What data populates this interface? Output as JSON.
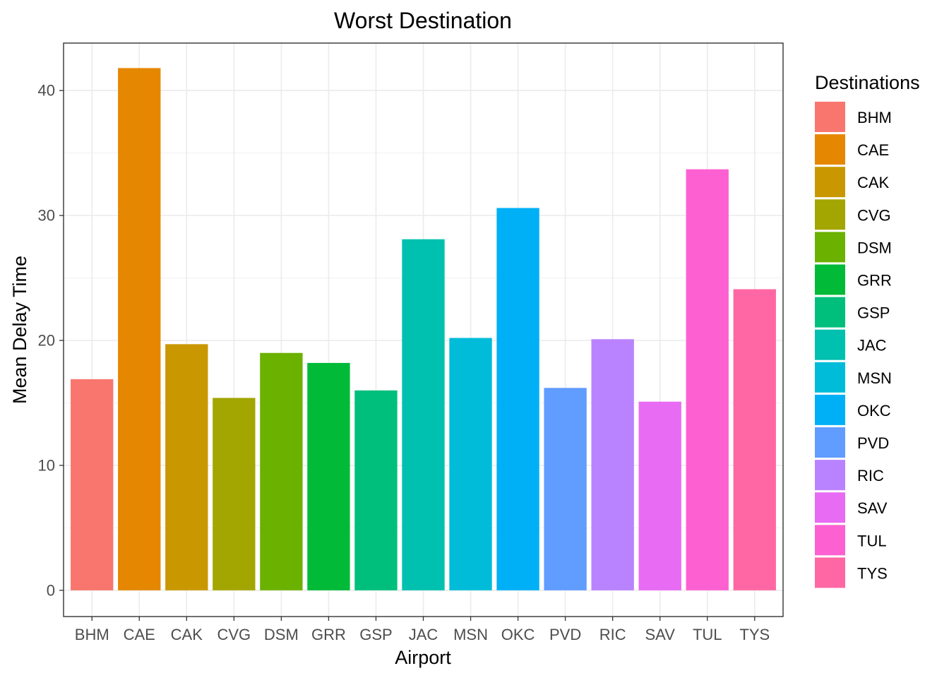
{
  "chart_data": {
    "type": "bar",
    "title": "Worst Destination",
    "xlabel": "Airport",
    "ylabel": "Mean Delay Time",
    "legend_title": "Destinations",
    "legend_position": "right",
    "grid": true,
    "ylim": [
      -2.1,
      43.8
    ],
    "y_ticks": [
      "0",
      "10",
      "20",
      "30",
      "40"
    ],
    "categories": [
      "BHM",
      "CAE",
      "CAK",
      "CVG",
      "DSM",
      "GRR",
      "GSP",
      "JAC",
      "MSN",
      "OKC",
      "PVD",
      "RIC",
      "SAV",
      "TUL",
      "TYS"
    ],
    "values": [
      16.9,
      41.8,
      19.7,
      15.4,
      19.0,
      18.2,
      16.0,
      28.1,
      20.2,
      30.6,
      16.2,
      20.1,
      15.1,
      33.7,
      24.1
    ],
    "colors": [
      "#F8766D",
      "#E58700",
      "#C99800",
      "#A3A500",
      "#6BB100",
      "#00BA38",
      "#00BF7D",
      "#00C0AF",
      "#00BCD8",
      "#00B0F6",
      "#619CFF",
      "#B983FF",
      "#E76BF3",
      "#FD61D1",
      "#FF67A4"
    ]
  }
}
